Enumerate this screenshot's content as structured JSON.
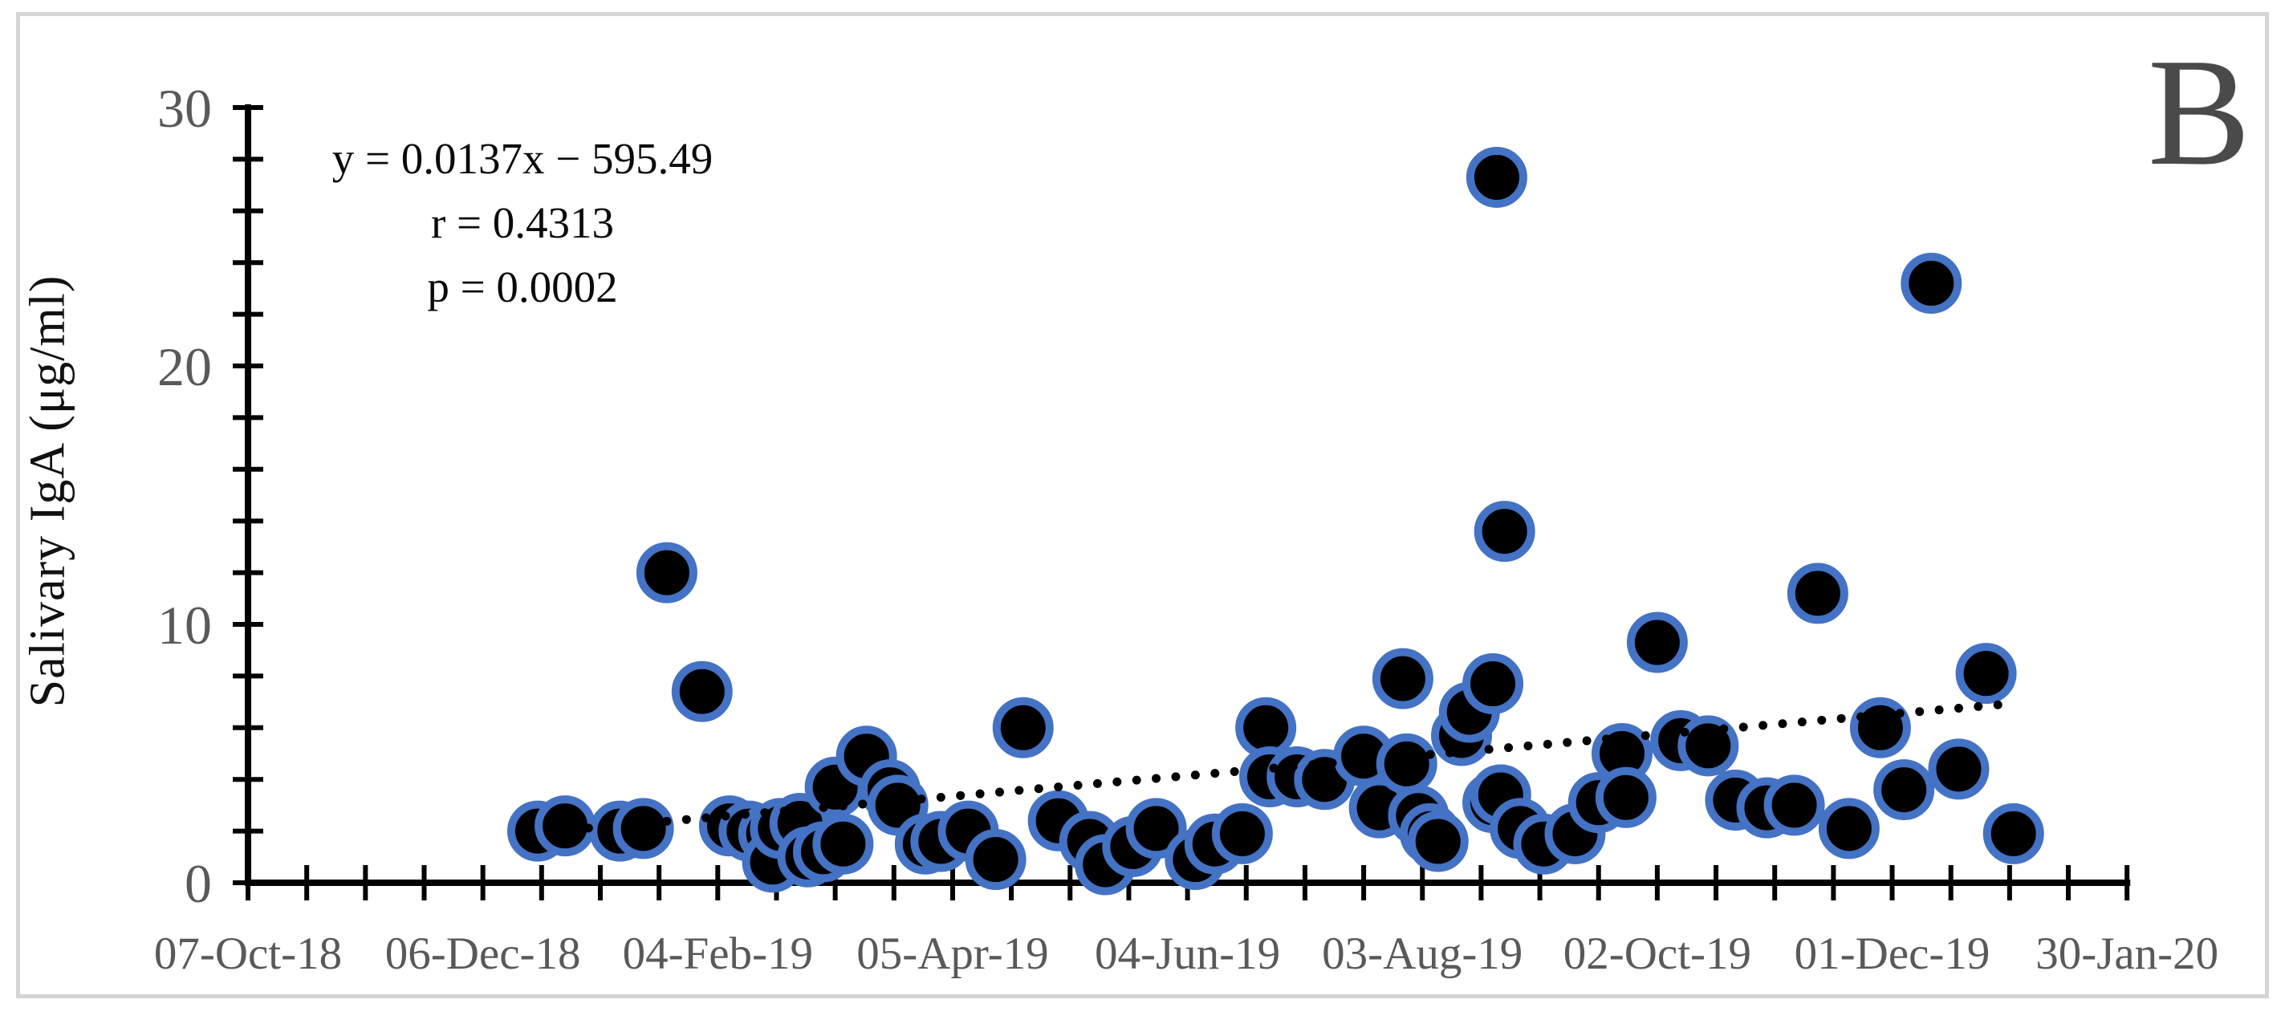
{
  "panel_label": "B",
  "annotation": {
    "equation": "y = 0.0137x − 595.49",
    "r": "r = 0.4313",
    "p": "p = 0.0002"
  },
  "chart_data": {
    "type": "scatter",
    "title": "",
    "xlabel": "",
    "ylabel": "Salivary IgA (μg/ml)",
    "ylim": [
      0,
      30
    ],
    "y_major_ticks": [
      0,
      10,
      20,
      30
    ],
    "y_minor_tick_step": 2,
    "x_range_days": [
      0,
      480
    ],
    "x_minor_tick_step_days": 15,
    "x_major_tick_step_days": 60,
    "x_tick_labels": [
      "07-Oct-18",
      "06-Dec-18",
      "04-Feb-19",
      "05-Apr-19",
      "04-Jun-19",
      "03-Aug-19",
      "02-Oct-19",
      "01-Dec-19",
      "30-Jan-20"
    ],
    "grid": "off",
    "legend": "none",
    "colors": {
      "marker_fill": "#000000",
      "marker_stroke": "#4472C4",
      "trend": "#000000",
      "axis": "#000000",
      "tick_label": "#595959",
      "annotation_text": "#0a0a0a",
      "panel_label": "#4a4a4a",
      "frame": "#d4d4d4"
    },
    "trend": {
      "style": "dotted",
      "start_day": 82,
      "start_value": 2.05,
      "end_day": 448,
      "end_value": 6.9,
      "dot_step_days": 5
    },
    "points": [
      {
        "date": "20-Dec-18",
        "day": 74,
        "value": 2.0
      },
      {
        "date": "27-Dec-18",
        "day": 81,
        "value": 2.2
      },
      {
        "date": "10-Jan-19",
        "day": 95,
        "value": 2.0
      },
      {
        "date": "16-Jan-19",
        "day": 101,
        "value": 2.1
      },
      {
        "date": "22-Jan-19",
        "day": 107,
        "value": 12.0
      },
      {
        "date": "31-Jan-19",
        "day": 116,
        "value": 7.4
      },
      {
        "date": "07-Feb-19",
        "day": 123,
        "value": 2.2
      },
      {
        "date": "12-Feb-19",
        "day": 128,
        "value": 2.0
      },
      {
        "date": "17-Feb-19",
        "day": 133,
        "value": 1.9
      },
      {
        "date": "18-Feb-19",
        "day": 134,
        "value": 0.8
      },
      {
        "date": "20-Feb-19",
        "day": 136,
        "value": 2.1
      },
      {
        "date": "25-Feb-19",
        "day": 141,
        "value": 2.3
      },
      {
        "date": "27-Feb-19",
        "day": 143,
        "value": 1.0
      },
      {
        "date": "03-Mar-19",
        "day": 147,
        "value": 1.2
      },
      {
        "date": "06-Mar-19",
        "day": 150,
        "value": 3.7
      },
      {
        "date": "08-Mar-19",
        "day": 152,
        "value": 1.5
      },
      {
        "date": "14-Mar-19",
        "day": 158,
        "value": 4.9
      },
      {
        "date": "20-Mar-19",
        "day": 164,
        "value": 3.6
      },
      {
        "date": "22-Mar-19",
        "day": 166,
        "value": 3.0
      },
      {
        "date": "29-Mar-19",
        "day": 173,
        "value": 1.5
      },
      {
        "date": "02-Apr-19",
        "day": 177,
        "value": 1.6
      },
      {
        "date": "09-Apr-19",
        "day": 184,
        "value": 2.0
      },
      {
        "date": "16-Apr-19",
        "day": 191,
        "value": 0.9
      },
      {
        "date": "23-Apr-19",
        "day": 198,
        "value": 6.0
      },
      {
        "date": "02-May-19",
        "day": 207,
        "value": 2.4
      },
      {
        "date": "10-May-19",
        "day": 215,
        "value": 1.6
      },
      {
        "date": "14-May-19",
        "day": 219,
        "value": 0.7
      },
      {
        "date": "21-May-19",
        "day": 226,
        "value": 1.4
      },
      {
        "date": "27-May-19",
        "day": 232,
        "value": 2.1
      },
      {
        "date": "06-Jun-19",
        "day": 242,
        "value": 0.9
      },
      {
        "date": "11-Jun-19",
        "day": 247,
        "value": 1.5
      },
      {
        "date": "18-Jun-19",
        "day": 254,
        "value": 1.9
      },
      {
        "date": "24-Jun-19",
        "day": 260,
        "value": 6.0
      },
      {
        "date": "25-Jun-19",
        "day": 261,
        "value": 4.1
      },
      {
        "date": "02-Jul-19",
        "day": 268,
        "value": 4.1
      },
      {
        "date": "09-Jul-19",
        "day": 275,
        "value": 4.0
      },
      {
        "date": "19-Jul-19",
        "day": 285,
        "value": 4.9
      },
      {
        "date": "23-Jul-19",
        "day": 289,
        "value": 2.9
      },
      {
        "date": "29-Jul-19",
        "day": 295,
        "value": 7.9
      },
      {
        "date": "30-Jul-19",
        "day": 296,
        "value": 4.6
      },
      {
        "date": "02-Aug-19",
        "day": 299,
        "value": 2.6
      },
      {
        "date": "05-Aug-19",
        "day": 302,
        "value": 1.9
      },
      {
        "date": "07-Aug-19",
        "day": 304,
        "value": 1.6
      },
      {
        "date": "13-Aug-19",
        "day": 310,
        "value": 5.7
      },
      {
        "date": "15-Aug-19",
        "day": 312,
        "value": 6.6
      },
      {
        "date": "21-Aug-19",
        "day": 318,
        "value": 7.7
      },
      {
        "date": "21-Aug-19",
        "day": 318,
        "value": 3.1
      },
      {
        "date": "22-Aug-19",
        "day": 319,
        "value": 27.3
      },
      {
        "date": "23-Aug-19",
        "day": 320,
        "value": 3.4
      },
      {
        "date": "24-Aug-19",
        "day": 321,
        "value": 13.6
      },
      {
        "date": "28-Aug-19",
        "day": 325,
        "value": 2.1
      },
      {
        "date": "03-Sep-19",
        "day": 331,
        "value": 1.5
      },
      {
        "date": "11-Sep-19",
        "day": 339,
        "value": 1.9
      },
      {
        "date": "17-Sep-19",
        "day": 345,
        "value": 3.1
      },
      {
        "date": "23-Sep-19",
        "day": 351,
        "value": 5.0
      },
      {
        "date": "24-Sep-19",
        "day": 352,
        "value": 3.3
      },
      {
        "date": "02-Oct-19",
        "day": 360,
        "value": 9.3
      },
      {
        "date": "08-Oct-19",
        "day": 366,
        "value": 5.5
      },
      {
        "date": "14-Oct-19",
        "day": 373,
        "value": 5.3
      },
      {
        "date": "21-Oct-19",
        "day": 380,
        "value": 3.2
      },
      {
        "date": "29-Oct-19",
        "day": 388,
        "value": 2.9
      },
      {
        "date": "05-Nov-19",
        "day": 395,
        "value": 3.0
      },
      {
        "date": "11-Nov-19",
        "day": 401,
        "value": 11.2
      },
      {
        "date": "19-Nov-19",
        "day": 409,
        "value": 2.1
      },
      {
        "date": "27-Nov-19",
        "day": 417,
        "value": 6.0
      },
      {
        "date": "03-Dec-19",
        "day": 423,
        "value": 3.6
      },
      {
        "date": "10-Dec-19",
        "day": 430,
        "value": 23.2
      },
      {
        "date": "17-Dec-19",
        "day": 437,
        "value": 4.4
      },
      {
        "date": "24-Dec-19",
        "day": 444,
        "value": 8.1
      },
      {
        "date": "31-Dec-19",
        "day": 451,
        "value": 1.9
      }
    ]
  }
}
